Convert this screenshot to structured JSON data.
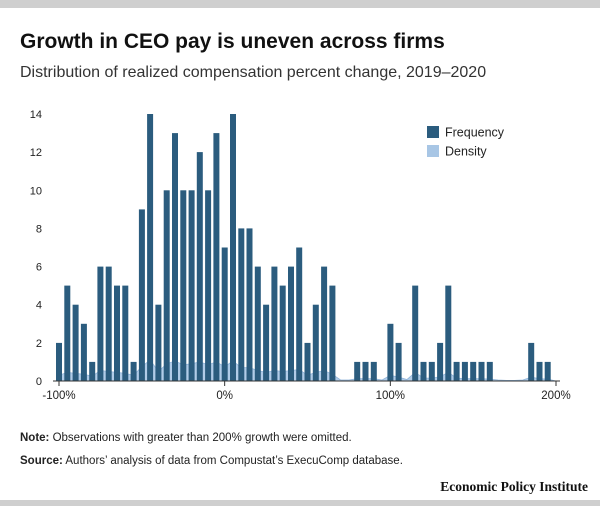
{
  "header": {
    "title": "Growth in CEO pay is uneven across firms",
    "subtitle": "Distribution of realized compensation percent change, 2019–2020"
  },
  "footer": {
    "note_label": "Note:",
    "note_text": " Observations with greater than 200% growth were omitted.",
    "source_label": "Source:",
    "source_text": " Authors’ analysis of data from Compustat’s ExecuComp database.",
    "brand": "Economic Policy Institute"
  },
  "colors": {
    "bar": "#2b5c7e",
    "density": "#a8c6e5",
    "axis": "#333333",
    "text": "#222222"
  },
  "chart_data": {
    "type": "bar",
    "title": "Growth in CEO pay is uneven across firms",
    "subtitle": "Distribution of realized compensation percent change, 2019–2020",
    "xlabel": "",
    "ylabel": "",
    "xlim": [
      -100,
      200
    ],
    "ylim": [
      0,
      14
    ],
    "xticks": [
      -100,
      0,
      100,
      200
    ],
    "xtick_labels": [
      "-100%",
      "0%",
      "100%",
      "200%"
    ],
    "yticks": [
      0,
      2,
      4,
      6,
      8,
      10,
      12,
      14
    ],
    "grid": false,
    "legend_position": "top-right",
    "bin_width": 5,
    "series": [
      {
        "name": "Frequency",
        "type": "bar",
        "x": [
          -100,
          -95,
          -90,
          -85,
          -80,
          -75,
          -70,
          -65,
          -60,
          -55,
          -50,
          -45,
          -40,
          -35,
          -30,
          -25,
          -20,
          -15,
          -10,
          -5,
          0,
          5,
          10,
          15,
          20,
          25,
          30,
          35,
          40,
          45,
          50,
          55,
          60,
          65,
          70,
          75,
          80,
          85,
          90,
          95,
          100,
          105,
          110,
          115,
          120,
          125,
          130,
          135,
          140,
          145,
          150,
          155,
          160,
          165,
          170,
          175,
          180,
          185,
          190,
          195
        ],
        "values": [
          2,
          5,
          4,
          3,
          1,
          6,
          6,
          5,
          5,
          1,
          9,
          14,
          4,
          10,
          13,
          10,
          10,
          12,
          10,
          13,
          7,
          14,
          8,
          8,
          6,
          4,
          6,
          5,
          6,
          7,
          2,
          4,
          6,
          5,
          0,
          0,
          1,
          1,
          1,
          0,
          3,
          2,
          0,
          5,
          1,
          1,
          2,
          5,
          1,
          1,
          1,
          1,
          1,
          0,
          0,
          0,
          0,
          2,
          1,
          1
        ]
      },
      {
        "name": "Density",
        "type": "area",
        "x": [
          -100,
          -95,
          -90,
          -85,
          -80,
          -75,
          -70,
          -65,
          -60,
          -55,
          -50,
          -45,
          -40,
          -35,
          -30,
          -25,
          -20,
          -15,
          -10,
          -5,
          0,
          5,
          10,
          15,
          20,
          25,
          30,
          35,
          40,
          45,
          50,
          55,
          60,
          65,
          70,
          75,
          80,
          85,
          90,
          95,
          100,
          105,
          110,
          115,
          120,
          125,
          130,
          135,
          140,
          145,
          150,
          155,
          160,
          165,
          170,
          175,
          180,
          185,
          190,
          195,
          200
        ],
        "values": [
          0.3,
          0.45,
          0.4,
          0.35,
          0.25,
          0.55,
          0.5,
          0.45,
          0.4,
          0.3,
          0.75,
          1.1,
          0.5,
          0.9,
          1.05,
          0.85,
          0.9,
          1.0,
          0.85,
          1.0,
          0.75,
          1.05,
          0.7,
          0.7,
          0.55,
          0.45,
          0.55,
          0.5,
          0.55,
          0.6,
          0.3,
          0.45,
          0.55,
          0.35,
          0.05,
          0.05,
          0.12,
          0.12,
          0.12,
          0.05,
          0.3,
          0.2,
          0.08,
          0.45,
          0.15,
          0.15,
          0.22,
          0.45,
          0.15,
          0.12,
          0.12,
          0.12,
          0.1,
          0.05,
          0.03,
          0.03,
          0.05,
          0.2,
          0.12,
          0.1,
          0.0
        ]
      }
    ]
  }
}
